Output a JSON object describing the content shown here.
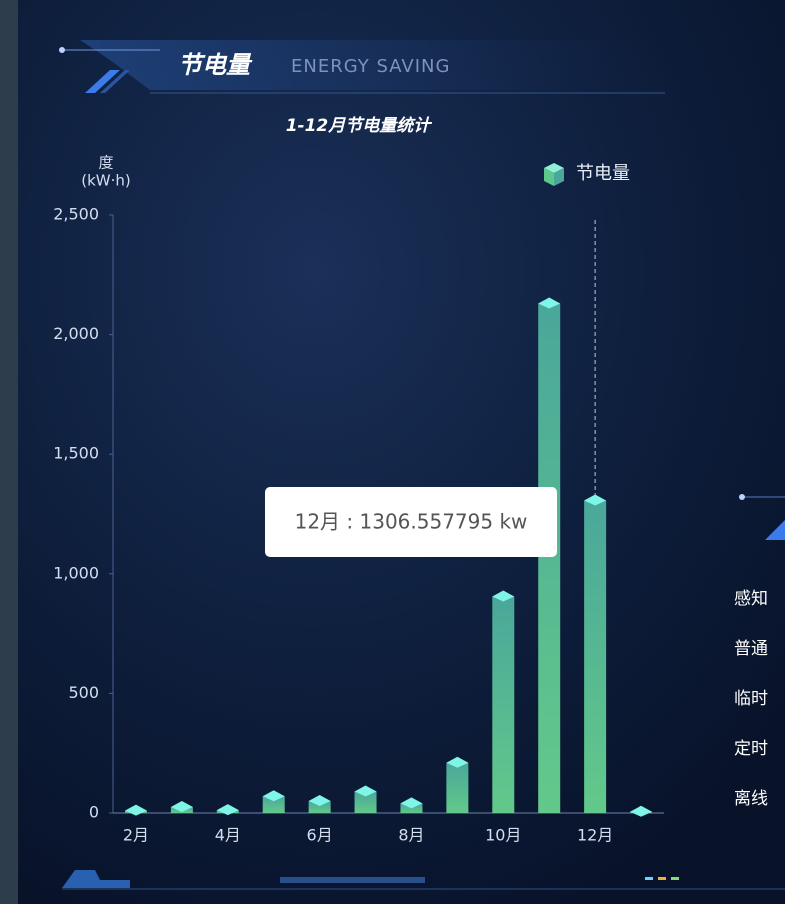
{
  "header": {
    "title": "节电量",
    "subtitle": "ENERGY SAVING"
  },
  "chart_data": {
    "type": "bar",
    "title": "1-12月节电量统计",
    "y_label": "度",
    "y_unit": "(kW·h)",
    "categories": [
      "2月",
      null,
      "4月",
      null,
      "6月",
      null,
      "8月",
      null,
      "10月",
      null,
      "12月",
      null
    ],
    "series": [
      {
        "name": "节电量",
        "color": "#5cc98a",
        "values": [
          10,
          25,
          12,
          70,
          50,
          90,
          40,
          210,
          905,
          2130,
          1306.557795,
          5
        ]
      }
    ],
    "ylim": [
      0,
      2500
    ],
    "yticks": [
      0,
      500,
      {
        "value": 1000,
        "label": "1,000"
      },
      {
        "value": 1500,
        "label": "1,500"
      },
      {
        "value": 2000,
        "label": "2,000"
      },
      {
        "value": 2500,
        "label": "2,500"
      }
    ],
    "legend": "top-right",
    "tooltip": "12月 : 1306.557795 kw"
  },
  "side_panel": {
    "items": [
      "感知",
      "普通",
      "临时",
      "定时",
      "离线"
    ]
  }
}
